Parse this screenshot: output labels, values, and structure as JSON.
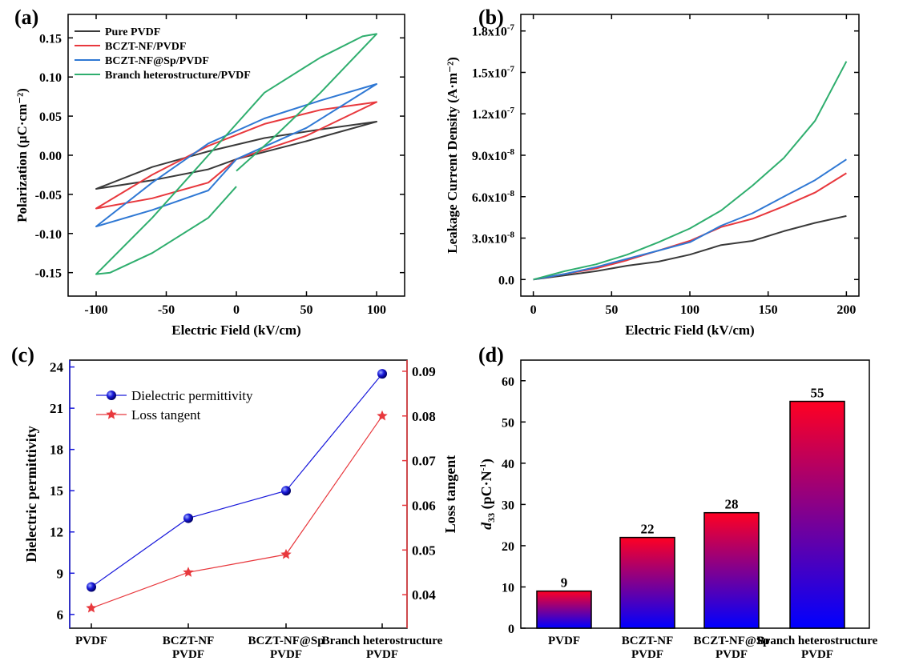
{
  "panels": {
    "a": {
      "label": "(a)"
    },
    "b": {
      "label": "(b)"
    },
    "c": {
      "label": "(c)"
    },
    "d": {
      "label": "(d)"
    }
  },
  "chart_data": [
    {
      "panel": "a",
      "type": "line",
      "title": "",
      "xlabel": "Electric Field (kV/cm)",
      "ylabel": "Polarization (μC·cm⁻²)",
      "xlim": [
        -120,
        120
      ],
      "ylim": [
        -0.18,
        0.18
      ],
      "xticks": [
        -100,
        -50,
        0,
        50,
        100
      ],
      "yticks": [
        -0.15,
        -0.1,
        -0.05,
        0.0,
        0.05,
        0.1,
        0.15
      ],
      "xtick_labels": [
        "-100",
        "-50",
        "0",
        "50",
        "100"
      ],
      "ytick_labels": [
        "-0.15",
        "-0.10",
        "-0.05",
        "0.00",
        "0.05",
        "0.10",
        "0.15"
      ],
      "legend_position": "top-left",
      "series": [
        {
          "name": "Pure PVDF",
          "color": "#3a3a3a",
          "x": [
            0,
            50,
            100,
            60,
            20,
            -20,
            -60,
            -100,
            -60,
            -20,
            0
          ],
          "y": [
            -0.005,
            0.018,
            0.043,
            0.033,
            0.022,
            0.005,
            -0.015,
            -0.043,
            -0.032,
            -0.018,
            -0.005
          ]
        },
        {
          "name": "BCZT-NF/PVDF",
          "color": "#e8383d",
          "x": [
            0,
            50,
            100,
            60,
            20,
            -20,
            -60,
            -100,
            -60,
            -20,
            0
          ],
          "y": [
            -0.005,
            0.025,
            0.068,
            0.058,
            0.04,
            0.012,
            -0.025,
            -0.068,
            -0.055,
            -0.035,
            -0.005
          ]
        },
        {
          "name": "BCZT-NF@Sp/PVDF",
          "color": "#2f78d4",
          "x": [
            0,
            50,
            100,
            60,
            20,
            -20,
            -60,
            -100,
            -60,
            -20,
            0
          ],
          "y": [
            -0.005,
            0.035,
            0.091,
            0.07,
            0.047,
            0.015,
            -0.035,
            -0.091,
            -0.07,
            -0.045,
            -0.005
          ]
        },
        {
          "name": "Branch heterostructure/PVDF",
          "color": "#2fae6e",
          "x": [
            0,
            25,
            60,
            100,
            90,
            60,
            20,
            -20,
            -60,
            -100,
            -90,
            -60,
            -20,
            0
          ],
          "y": [
            -0.02,
            0.02,
            0.08,
            0.155,
            0.152,
            0.125,
            0.08,
            0.0,
            -0.08,
            -0.152,
            -0.15,
            -0.125,
            -0.08,
            -0.04
          ]
        }
      ]
    },
    {
      "panel": "b",
      "type": "line",
      "title": "",
      "xlabel": "Electric Field (kV/cm)",
      "ylabel": "Leakage Current Density (A·m⁻²)",
      "xlim": [
        -8,
        208
      ],
      "ylim": [
        -1.2e-08,
        1.92e-07
      ],
      "xticks": [
        0,
        50,
        100,
        150,
        200
      ],
      "xtick_labels": [
        "0",
        "50",
        "100",
        "150",
        "200"
      ],
      "yticks": [
        0,
        3e-08,
        6e-08,
        9e-08,
        1.2e-07,
        1.5e-07,
        1.8e-07
      ],
      "ytick_labels": [
        {
          "m": "0.0",
          "e": ""
        },
        {
          "m": "3.0x10",
          "e": "-8"
        },
        {
          "m": "6.0x10",
          "e": "-8"
        },
        {
          "m": "9.0x10",
          "e": "-8"
        },
        {
          "m": "1.2x10",
          "e": "-7"
        },
        {
          "m": "1.5x10",
          "e": "-7"
        },
        {
          "m": "1.8x10",
          "e": "-7"
        }
      ],
      "series": [
        {
          "color": "#3a3a3a",
          "x": [
            0,
            20,
            40,
            60,
            80,
            100,
            120,
            140,
            160,
            180,
            200
          ],
          "y": [
            0,
            3e-09,
            6e-09,
            1e-08,
            1.3e-08,
            1.8e-08,
            2.5e-08,
            2.8e-08,
            3.5e-08,
            4.1e-08,
            4.6e-08
          ]
        },
        {
          "color": "#e8383d",
          "x": [
            0,
            20,
            40,
            60,
            80,
            100,
            120,
            140,
            160,
            180,
            200
          ],
          "y": [
            0,
            4e-09,
            8e-09,
            1.4e-08,
            2.1e-08,
            2.8e-08,
            3.8e-08,
            4.4e-08,
            5.3e-08,
            6.3e-08,
            7.7e-08
          ]
        },
        {
          "color": "#2f78d4",
          "x": [
            0,
            20,
            40,
            60,
            80,
            100,
            120,
            140,
            160,
            180,
            200
          ],
          "y": [
            0,
            4e-09,
            9e-09,
            1.5e-08,
            2.1e-08,
            2.7e-08,
            3.9e-08,
            4.8e-08,
            6e-08,
            7.2e-08,
            8.7e-08
          ]
        },
        {
          "color": "#2fae6e",
          "x": [
            0,
            20,
            40,
            60,
            80,
            100,
            120,
            140,
            160,
            180,
            200
          ],
          "y": [
            0,
            6e-09,
            1.1e-08,
            1.8e-08,
            2.7e-08,
            3.7e-08,
            5e-08,
            6.8e-08,
            8.8e-08,
            1.15e-07,
            1.58e-07
          ]
        }
      ]
    },
    {
      "panel": "c",
      "type": "line",
      "title": "",
      "categories": [
        [
          "PVDF"
        ],
        [
          "BCZT-NF",
          "PVDF"
        ],
        [
          "BCZT-NF@Sp",
          "PVDF"
        ],
        [
          "Branch heterostructure",
          "PVDF"
        ]
      ],
      "ylabel_left": "Dielectric permittivity",
      "ylabel_right": "Loss tangent",
      "ylim_left": [
        5,
        24.5
      ],
      "ylim_right": [
        0.0325,
        0.0925
      ],
      "yticks_left": [
        6,
        9,
        12,
        15,
        18,
        21,
        24
      ],
      "ytick_labels_left": [
        "6",
        "9",
        "12",
        "15",
        "18",
        "21",
        "24"
      ],
      "yticks_right": [
        0.04,
        0.05,
        0.06,
        0.07,
        0.08,
        0.09
      ],
      "ytick_labels_right": [
        "0.04",
        "0.05",
        "0.06",
        "0.07",
        "0.08",
        "0.09"
      ],
      "left_color": "#1a1adb",
      "right_color": "#e8383d",
      "legend_position": "top-left",
      "series": [
        {
          "name": "Dielectric permittivity",
          "axis": "left",
          "marker": "sphere",
          "color": "#1a1adb",
          "values": [
            8,
            13,
            15,
            23.5
          ]
        },
        {
          "name": "Loss tangent",
          "axis": "right",
          "marker": "star",
          "color": "#e8383d",
          "values": [
            0.037,
            0.045,
            0.049,
            0.08
          ]
        }
      ]
    },
    {
      "panel": "d",
      "type": "bar",
      "title": "",
      "categories": [
        [
          "PVDF"
        ],
        [
          "BCZT-NF",
          "PVDF"
        ],
        [
          "BCZT-NF@Sp",
          "PVDF"
        ],
        [
          "Branch heterostructure",
          "PVDF"
        ]
      ],
      "values": [
        9,
        22,
        28,
        55
      ],
      "data_labels": [
        "9",
        "22",
        "28",
        "55"
      ],
      "ylabel": {
        "d": "d",
        "sub": "33",
        "rest": " (pC·N",
        "exp": "-1",
        "close": ")"
      },
      "ylim": [
        0,
        65
      ],
      "yticks": [
        0,
        10,
        20,
        30,
        40,
        50,
        60
      ],
      "ytick_labels": [
        "0",
        "10",
        "20",
        "30",
        "40",
        "50",
        "60"
      ],
      "gradient": [
        "#ff0022",
        "#0000ff"
      ]
    }
  ]
}
